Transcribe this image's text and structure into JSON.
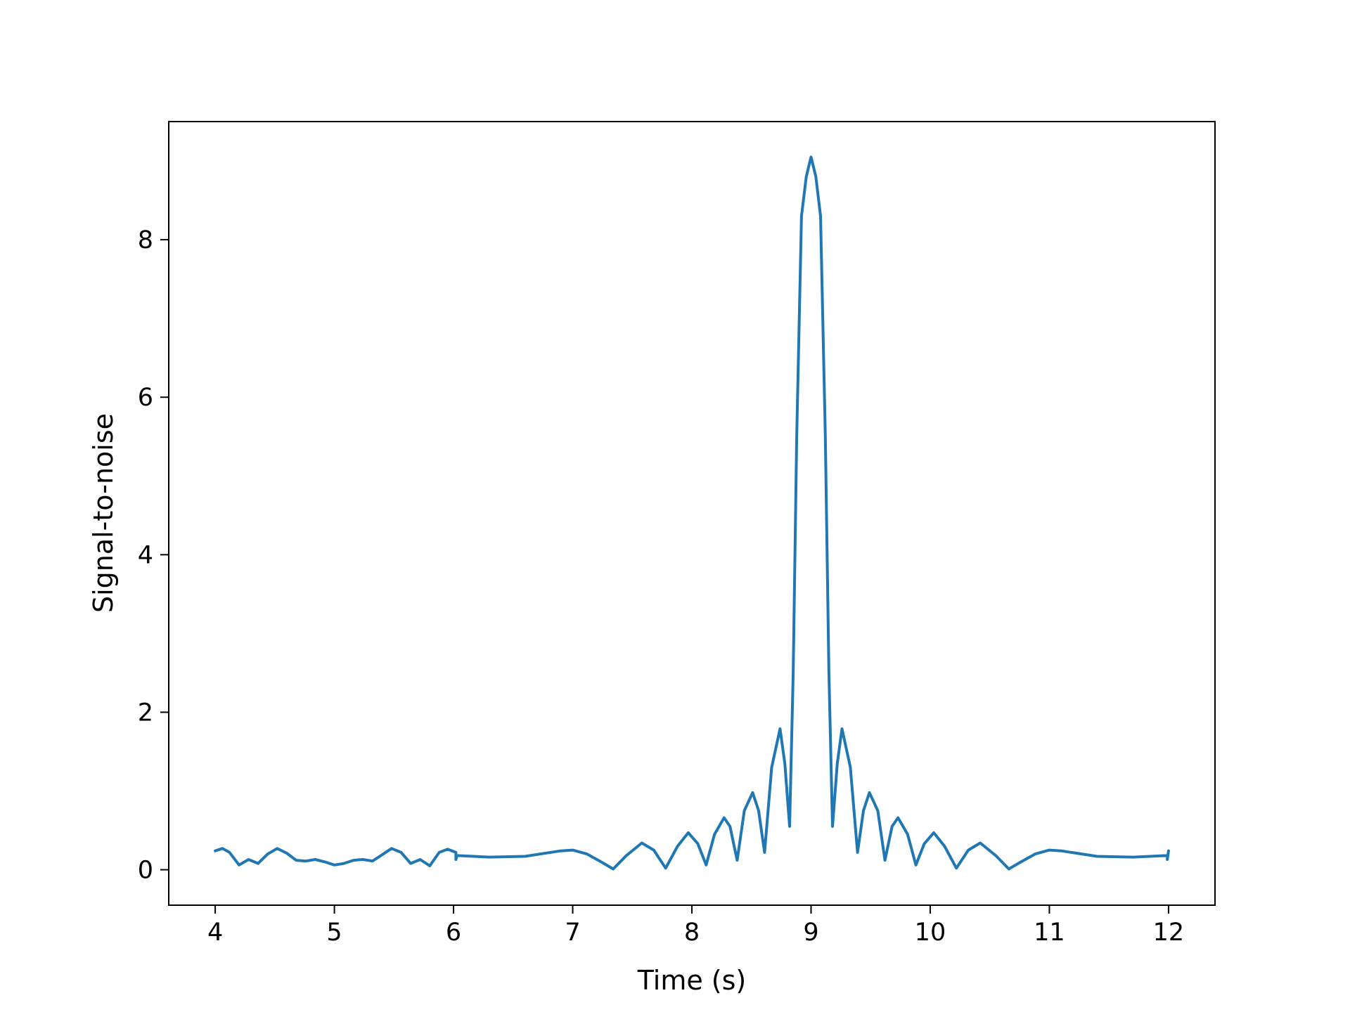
{
  "chart_data": {
    "type": "line",
    "title": "",
    "xlabel": "Time (s)",
    "ylabel": "Signal-to-noise",
    "xlim": [
      3.61,
      12.39
    ],
    "ylim": [
      -0.45,
      9.5
    ],
    "xticks": [
      4,
      5,
      6,
      7,
      8,
      9,
      10,
      11,
      12
    ],
    "yticks": [
      0,
      2,
      4,
      6,
      8
    ],
    "grid": false,
    "legend": "none",
    "series": [
      {
        "color": "#1f77b4",
        "points": [
          [
            4.0,
            0.24
          ],
          [
            4.06,
            0.27
          ],
          [
            4.12,
            0.22
          ],
          [
            4.2,
            0.06
          ],
          [
            4.28,
            0.13
          ],
          [
            4.36,
            0.08
          ],
          [
            4.44,
            0.2
          ],
          [
            4.52,
            0.27
          ],
          [
            4.6,
            0.21
          ],
          [
            4.68,
            0.12
          ],
          [
            4.76,
            0.11
          ],
          [
            4.84,
            0.13
          ],
          [
            4.92,
            0.1
          ],
          [
            5.0,
            0.06
          ],
          [
            5.08,
            0.08
          ],
          [
            5.16,
            0.12
          ],
          [
            5.24,
            0.13
          ],
          [
            5.32,
            0.11
          ],
          [
            5.4,
            0.19
          ],
          [
            5.48,
            0.27
          ],
          [
            5.56,
            0.22
          ],
          [
            5.64,
            0.08
          ],
          [
            5.72,
            0.13
          ],
          [
            5.8,
            0.05
          ],
          [
            5.88,
            0.22
          ],
          [
            5.95,
            0.26
          ],
          [
            6.02,
            0.22
          ],
          [
            6.02,
            0.13
          ],
          [
            6.03,
            0.18
          ],
          [
            6.3,
            0.16
          ],
          [
            6.6,
            0.17
          ],
          [
            6.9,
            0.24
          ],
          [
            7.0,
            0.25
          ],
          [
            7.12,
            0.2
          ],
          [
            7.25,
            0.09
          ],
          [
            7.34,
            0.01
          ],
          [
            7.45,
            0.18
          ],
          [
            7.58,
            0.34
          ],
          [
            7.68,
            0.25
          ],
          [
            7.78,
            0.02
          ],
          [
            7.88,
            0.3
          ],
          [
            7.97,
            0.47
          ],
          [
            8.05,
            0.33
          ],
          [
            8.12,
            0.06
          ],
          [
            8.19,
            0.45
          ],
          [
            8.27,
            0.66
          ],
          [
            8.32,
            0.55
          ],
          [
            8.38,
            0.12
          ],
          [
            8.44,
            0.75
          ],
          [
            8.51,
            0.98
          ],
          [
            8.56,
            0.75
          ],
          [
            8.61,
            0.22
          ],
          [
            8.67,
            1.3
          ],
          [
            8.74,
            1.79
          ],
          [
            8.78,
            1.35
          ],
          [
            8.82,
            0.55
          ],
          [
            8.85,
            2.5
          ],
          [
            8.88,
            5.5
          ],
          [
            8.92,
            8.3
          ],
          [
            8.96,
            8.8
          ],
          [
            9.0,
            9.05
          ],
          [
            9.04,
            8.8
          ],
          [
            9.08,
            8.3
          ],
          [
            9.12,
            5.5
          ],
          [
            9.15,
            2.5
          ],
          [
            9.18,
            0.55
          ],
          [
            9.22,
            1.35
          ],
          [
            9.26,
            1.79
          ],
          [
            9.33,
            1.3
          ],
          [
            9.39,
            0.22
          ],
          [
            9.44,
            0.75
          ],
          [
            9.49,
            0.98
          ],
          [
            9.56,
            0.75
          ],
          [
            9.62,
            0.12
          ],
          [
            9.68,
            0.55
          ],
          [
            9.73,
            0.66
          ],
          [
            9.81,
            0.45
          ],
          [
            9.88,
            0.06
          ],
          [
            9.95,
            0.33
          ],
          [
            10.03,
            0.47
          ],
          [
            10.12,
            0.3
          ],
          [
            10.22,
            0.02
          ],
          [
            10.32,
            0.25
          ],
          [
            10.42,
            0.34
          ],
          [
            10.55,
            0.18
          ],
          [
            10.66,
            0.01
          ],
          [
            10.75,
            0.09
          ],
          [
            10.88,
            0.2
          ],
          [
            11.0,
            0.25
          ],
          [
            11.1,
            0.24
          ],
          [
            11.4,
            0.17
          ],
          [
            11.7,
            0.16
          ],
          [
            11.99,
            0.18
          ],
          [
            11.99,
            0.13
          ],
          [
            12.0,
            0.24
          ]
        ]
      }
    ]
  }
}
